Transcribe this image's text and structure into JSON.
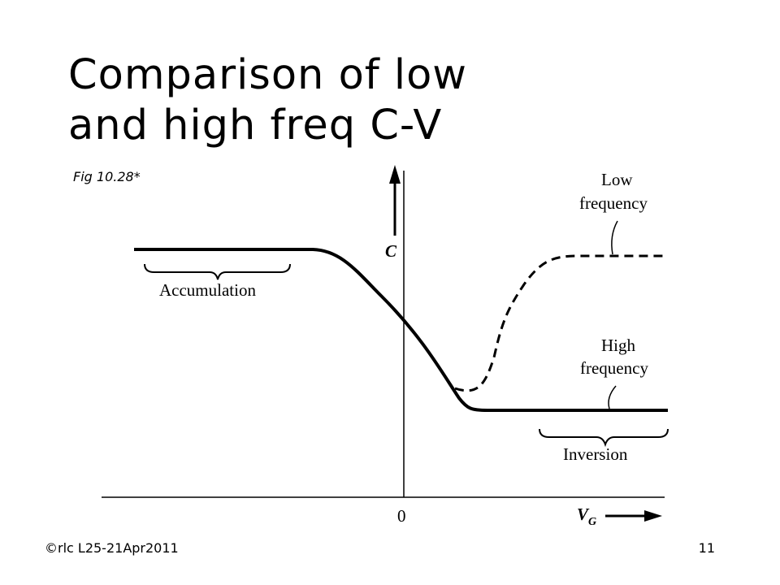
{
  "slide": {
    "title_line1": "Comparison of low",
    "title_line2": "and high freq C-V",
    "figure_ref": "Fig 10.28*",
    "footer_left": "©rlc L25-21Apr2011",
    "page_number": "11"
  },
  "figure": {
    "y_axis_label": "C",
    "x_axis_label": "V",
    "x_axis_subscript": "G",
    "origin_label": "0",
    "region_accumulation": "Accumulation",
    "region_inversion": "Inversion",
    "low_freq_line1": "Low",
    "low_freq_line2": "frequency",
    "high_freq_line1": "High",
    "high_freq_line2": "frequency"
  }
}
